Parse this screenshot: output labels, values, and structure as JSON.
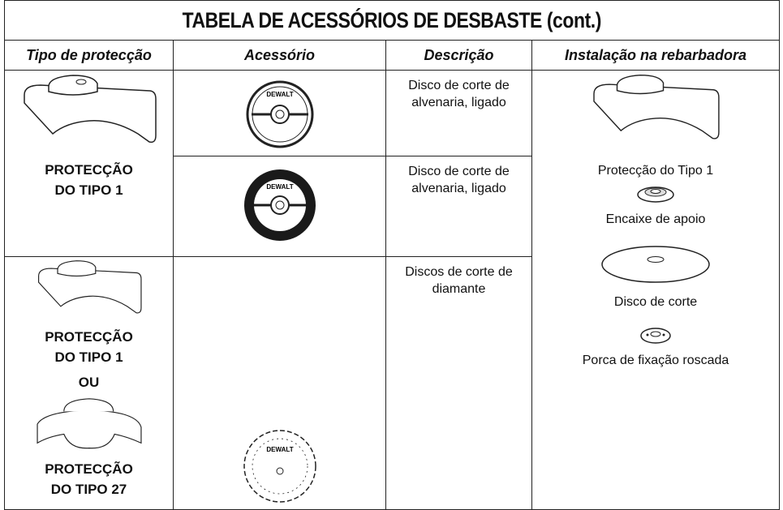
{
  "header": {
    "title": "TABELA DE ACESSÓRIOS DE DESBASTE (cont.)"
  },
  "table": {
    "columns": [
      "Tipo de protecção",
      "Acessório",
      "Descrição",
      "Instalação na rebarbadora"
    ],
    "guard_types": [
      [
        "PROTECÇÃO",
        "DO TIPO 1"
      ],
      [
        "PROTECÇÃO",
        "DO TIPO 1",
        "OU",
        "PROTECÇÃO",
        "DO TIPO 27"
      ]
    ],
    "disc_logo": "DEWALT",
    "descriptions": [
      "Disco de corte de alvenaria, ligado",
      "Disco de corte de alvenaria, ligado",
      "Discos de corte de diamante"
    ],
    "installation": [
      "Protecção do Tipo 1",
      "Encaixe de apoio",
      "Disco de corte",
      "Porca de fixação roscada"
    ]
  }
}
